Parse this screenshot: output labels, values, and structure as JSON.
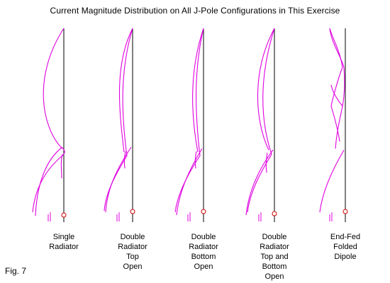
{
  "title": "Current Magnitude Distribution on All J-Pole Configurations in This Exercise",
  "figure_label": "Fig. 7",
  "colors": {
    "conductor": "#000000",
    "current_curve": "#e000e0",
    "feed_point": "#d00000"
  },
  "configurations": [
    {
      "caption_lines": [
        "Single",
        "Radiator"
      ]
    },
    {
      "caption_lines": [
        "Double",
        "Radiator",
        "Top",
        "Open"
      ]
    },
    {
      "caption_lines": [
        "Double",
        "Radiator",
        "Bottom",
        "Open"
      ]
    },
    {
      "caption_lines": [
        "Double",
        "Radiator",
        "Top and",
        "Bottom",
        "Open"
      ]
    },
    {
      "caption_lines": [
        "End-Fed",
        "Folded",
        "Dipole"
      ]
    }
  ]
}
